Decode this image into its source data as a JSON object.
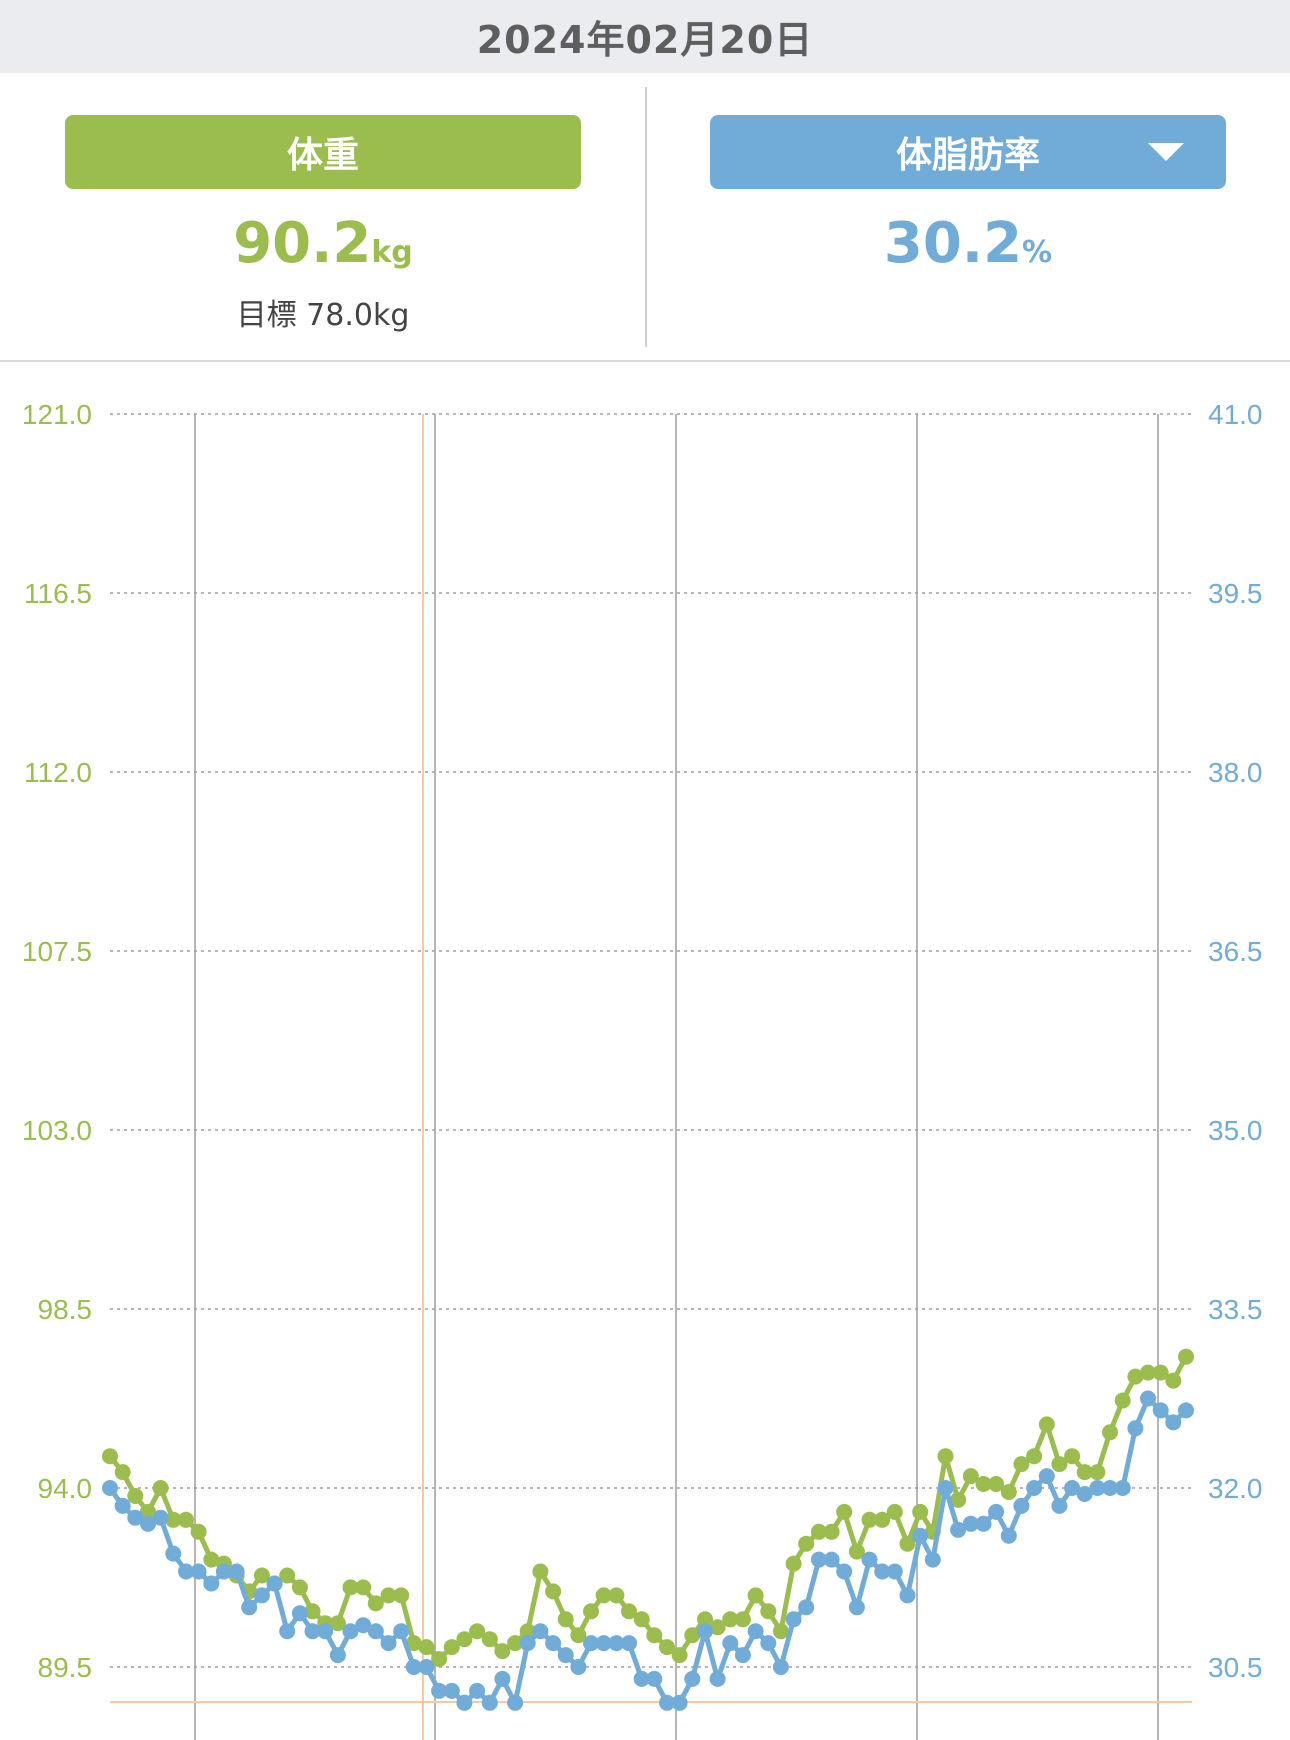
{
  "header": {
    "date": "2024年02月20日",
    "weight_tab": "体重",
    "weight_value": "90.2",
    "weight_unit": "kg",
    "goal_text": "目標 78.0kg",
    "fat_tab": "体脂肪率",
    "fat_value": "30.2",
    "fat_unit": "%"
  },
  "colors": {
    "weight": "#9bbd4e",
    "fat": "#71acd8",
    "goal_line": "#f5c9a4",
    "grid": "#9e9e9e"
  },
  "icons": {
    "dropdown": "chevron-down-icon"
  },
  "chart_data": {
    "type": "line",
    "grid": true,
    "y_left": {
      "ticks": [
        "121.0",
        "116.5",
        "112.0",
        "107.5",
        "103.0",
        "98.5",
        "94.0",
        "89.5"
      ],
      "range": [
        88.0,
        121.0
      ]
    },
    "y_right": {
      "ticks": [
        "41.0",
        "39.5",
        "38.0",
        "36.5",
        "35.0",
        "33.5",
        "32.0",
        "30.5"
      ],
      "range": [
        30.0,
        41.0
      ]
    },
    "goal_weight": 78.0,
    "series": [
      {
        "name": "体重",
        "axis": "left",
        "values": [
          94.8,
          94.4,
          93.8,
          93.4,
          94.0,
          93.2,
          93.2,
          92.9,
          92.2,
          92.1,
          91.8,
          91.4,
          91.8,
          91.6,
          91.8,
          91.5,
          90.9,
          90.6,
          90.6,
          91.5,
          91.5,
          91.1,
          91.3,
          91.3,
          90.1,
          90.0,
          89.7,
          90.0,
          90.2,
          90.4,
          90.2,
          89.9,
          90.1,
          90.4,
          91.9,
          91.4,
          90.7,
          90.3,
          90.9,
          91.3,
          91.3,
          90.9,
          90.7,
          90.3,
          90.0,
          89.8,
          90.3,
          90.7,
          90.5,
          90.7,
          90.7,
          91.3,
          90.9,
          90.4,
          92.1,
          92.6,
          92.9,
          92.9,
          93.4,
          92.4,
          93.2,
          93.2,
          93.4,
          92.6,
          93.4,
          92.9,
          94.8,
          93.7,
          94.3,
          94.1,
          94.1,
          93.9,
          94.6,
          94.8,
          95.6,
          94.6,
          94.8,
          94.4,
          94.4,
          95.4,
          96.2,
          96.8,
          96.9,
          96.9,
          96.7,
          97.3
        ]
      },
      {
        "name": "体脂肪率",
        "axis": "right",
        "values": [
          32.0,
          31.85,
          31.75,
          31.7,
          31.75,
          31.45,
          31.3,
          31.3,
          31.2,
          31.3,
          31.3,
          31.0,
          31.1,
          31.2,
          30.8,
          30.95,
          30.8,
          30.8,
          30.6,
          30.8,
          30.85,
          30.8,
          30.7,
          30.8,
          30.5,
          30.5,
          30.3,
          30.3,
          30.2,
          30.3,
          30.2,
          30.4,
          30.2,
          30.7,
          30.8,
          30.7,
          30.6,
          30.5,
          30.7,
          30.7,
          30.7,
          30.7,
          30.4,
          30.4,
          30.2,
          30.2,
          30.4,
          30.8,
          30.4,
          30.7,
          30.6,
          30.8,
          30.7,
          30.5,
          30.9,
          31.0,
          31.4,
          31.4,
          31.3,
          31.0,
          31.4,
          31.3,
          31.3,
          31.1,
          31.6,
          31.4,
          32.0,
          31.65,
          31.7,
          31.7,
          31.8,
          31.6,
          31.85,
          32.0,
          32.1,
          31.85,
          32.0,
          31.95,
          32.0,
          32.0,
          32.0,
          32.5,
          32.75,
          32.65,
          32.55,
          32.65
        ]
      }
    ]
  }
}
